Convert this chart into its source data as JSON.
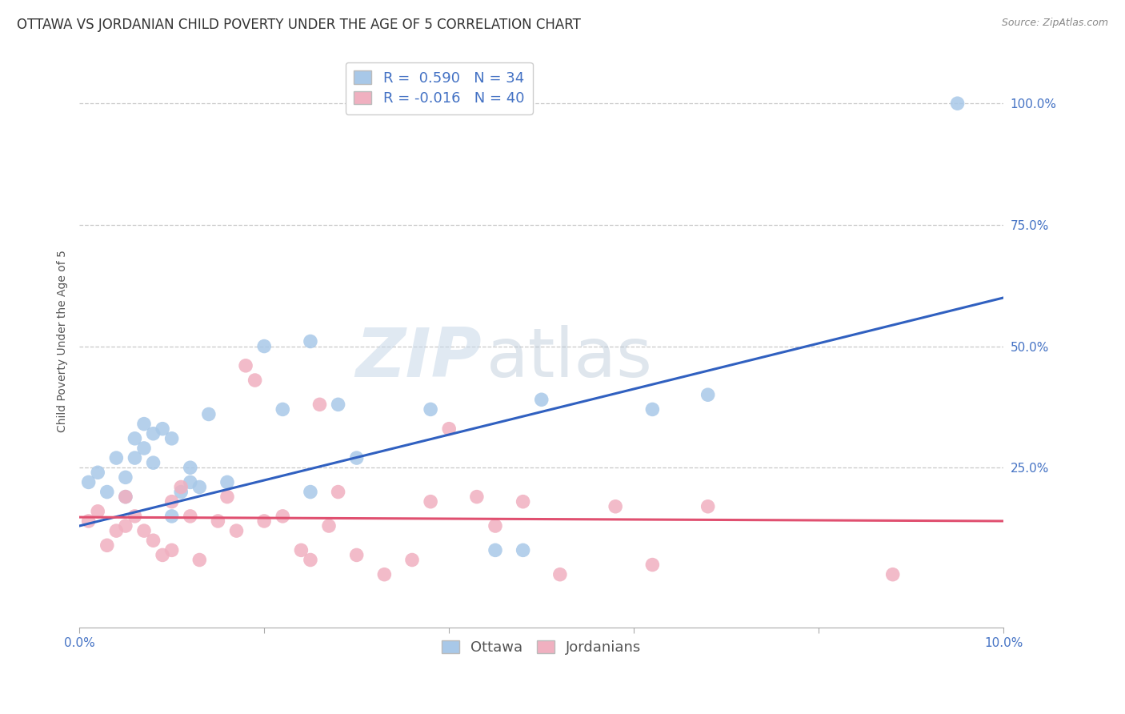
{
  "title": "OTTAWA VS JORDANIAN CHILD POVERTY UNDER THE AGE OF 5 CORRELATION CHART",
  "source": "Source: ZipAtlas.com",
  "ylabel": "Child Poverty Under the Age of 5",
  "xlim": [
    0,
    0.1
  ],
  "ylim": [
    -0.08,
    1.1
  ],
  "xtick_positions": [
    0.0,
    0.02,
    0.04,
    0.06,
    0.08,
    0.1
  ],
  "xtick_labels": [
    "0.0%",
    "",
    "",
    "",
    "",
    "10.0%"
  ],
  "ytick_right": [
    0.25,
    0.5,
    0.75,
    1.0
  ],
  "ytick_right_labels": [
    "25.0%",
    "50.0%",
    "75.0%",
    "100.0%"
  ],
  "grid_color": "#c8c8c8",
  "background_color": "#ffffff",
  "ottawa_color": "#a8c8e8",
  "jordanian_color": "#f0b0c0",
  "ottawa_line_color": "#3060c0",
  "jordanian_line_color": "#e05070",
  "ottawa_R": 0.59,
  "ottawa_N": 34,
  "jordanian_R": -0.016,
  "jordanian_N": 40,
  "ottawa_scatter_x": [
    0.001,
    0.002,
    0.003,
    0.004,
    0.005,
    0.005,
    0.006,
    0.006,
    0.007,
    0.007,
    0.008,
    0.008,
    0.009,
    0.01,
    0.01,
    0.011,
    0.012,
    0.012,
    0.013,
    0.014,
    0.016,
    0.02,
    0.022,
    0.025,
    0.025,
    0.028,
    0.03,
    0.038,
    0.045,
    0.048,
    0.05,
    0.062,
    0.068,
    0.095
  ],
  "ottawa_scatter_y": [
    0.22,
    0.24,
    0.2,
    0.27,
    0.19,
    0.23,
    0.31,
    0.27,
    0.34,
    0.29,
    0.32,
    0.26,
    0.33,
    0.31,
    0.15,
    0.2,
    0.22,
    0.25,
    0.21,
    0.36,
    0.22,
    0.5,
    0.37,
    0.51,
    0.2,
    0.38,
    0.27,
    0.37,
    0.08,
    0.08,
    0.39,
    0.37,
    0.4,
    1.0
  ],
  "jordanian_scatter_x": [
    0.001,
    0.002,
    0.003,
    0.004,
    0.005,
    0.005,
    0.006,
    0.007,
    0.008,
    0.009,
    0.01,
    0.01,
    0.011,
    0.012,
    0.013,
    0.015,
    0.016,
    0.017,
    0.018,
    0.019,
    0.02,
    0.022,
    0.024,
    0.025,
    0.026,
    0.027,
    0.028,
    0.03,
    0.033,
    0.036,
    0.038,
    0.04,
    0.043,
    0.045,
    0.048,
    0.052,
    0.058,
    0.062,
    0.068,
    0.088
  ],
  "jordanian_scatter_y": [
    0.14,
    0.16,
    0.09,
    0.12,
    0.13,
    0.19,
    0.15,
    0.12,
    0.1,
    0.07,
    0.08,
    0.18,
    0.21,
    0.15,
    0.06,
    0.14,
    0.19,
    0.12,
    0.46,
    0.43,
    0.14,
    0.15,
    0.08,
    0.06,
    0.38,
    0.13,
    0.2,
    0.07,
    0.03,
    0.06,
    0.18,
    0.33,
    0.19,
    0.13,
    0.18,
    0.03,
    0.17,
    0.05,
    0.17,
    0.03
  ],
  "ottawa_line_x": [
    0.0,
    0.1
  ],
  "ottawa_line_y": [
    0.13,
    0.6
  ],
  "jordanian_line_x": [
    0.0,
    0.1
  ],
  "jordanian_line_y": [
    0.148,
    0.14
  ],
  "watermark_zip": "ZIP",
  "watermark_atlas": "atlas",
  "title_fontsize": 12,
  "axis_label_fontsize": 10,
  "tick_fontsize": 11,
  "legend_fontsize": 13,
  "right_tick_color": "#4472c4",
  "tick_color": "#4472c4"
}
